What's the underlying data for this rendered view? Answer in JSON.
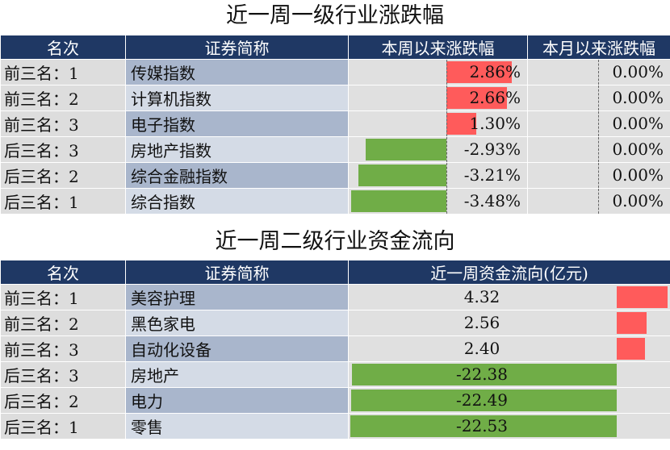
{
  "section1": {
    "title": "近一周一级行业涨跌幅",
    "headers": {
      "rank": "名次",
      "name": "证券简称",
      "week": "本周以来涨跌幅",
      "month": "本月以来涨跌幅"
    },
    "colors": {
      "positive": "#ff5b5b",
      "negative": "#70ad47",
      "header": "#1f3864"
    },
    "rows": [
      {
        "rank": "前三名：1",
        "name": "传媒指数",
        "week": "2.86%",
        "month": "0.00%"
      },
      {
        "rank": "前三名：2",
        "name": "计算机指数",
        "week": "2.66%",
        "month": "0.00%"
      },
      {
        "rank": "前三名：3",
        "name": "电子指数",
        "week": "1.30%",
        "month": "0.00%"
      },
      {
        "rank": "后三名：3",
        "name": "房地产指数",
        "week": "-2.93%",
        "month": "0.00%"
      },
      {
        "rank": "后三名：2",
        "name": "综合金融指数",
        "week": "-3.21%",
        "month": "0.00%"
      },
      {
        "rank": "后三名：1",
        "name": "综合指数",
        "week": "-3.48%",
        "month": "0.00%"
      }
    ]
  },
  "section2": {
    "title": "近一周二级行业资金流向",
    "headers": {
      "rank": "名次",
      "name": "证券简称",
      "flow": "近一周资金流向(亿元)"
    },
    "rows": [
      {
        "rank": "前三名：1",
        "name": "美容护理",
        "flow": "4.32"
      },
      {
        "rank": "前三名：2",
        "name": "黑色家电",
        "flow": "2.56"
      },
      {
        "rank": "前三名：3",
        "name": "自动化设备",
        "flow": "2.40"
      },
      {
        "rank": "后三名：3",
        "name": "房地产",
        "flow": "-22.38"
      },
      {
        "rank": "后三名：2",
        "name": "电力",
        "flow": "-22.49"
      },
      {
        "rank": "后三名：1",
        "name": "零售",
        "flow": "-22.53"
      }
    ]
  },
  "chart_data": [
    {
      "type": "table",
      "title": "近一周一级行业涨跌幅",
      "categories": [
        "传媒指数",
        "计算机指数",
        "电子指数",
        "房地产指数",
        "综合金融指数",
        "综合指数"
      ],
      "series": [
        {
          "name": "本周以来涨跌幅",
          "values": [
            2.86,
            2.66,
            1.3,
            -2.93,
            -3.21,
            -3.48
          ]
        },
        {
          "name": "本月以来涨跌幅",
          "values": [
            0.0,
            0.0,
            0.0,
            0.0,
            0.0,
            0.0
          ]
        }
      ]
    },
    {
      "type": "table",
      "title": "近一周二级行业资金流向",
      "categories": [
        "美容护理",
        "黑色家电",
        "自动化设备",
        "房地产",
        "电力",
        "零售"
      ],
      "series": [
        {
          "name": "近一周资金流向(亿元)",
          "values": [
            4.32,
            2.56,
            2.4,
            -22.38,
            -22.49,
            -22.53
          ]
        }
      ]
    }
  ]
}
